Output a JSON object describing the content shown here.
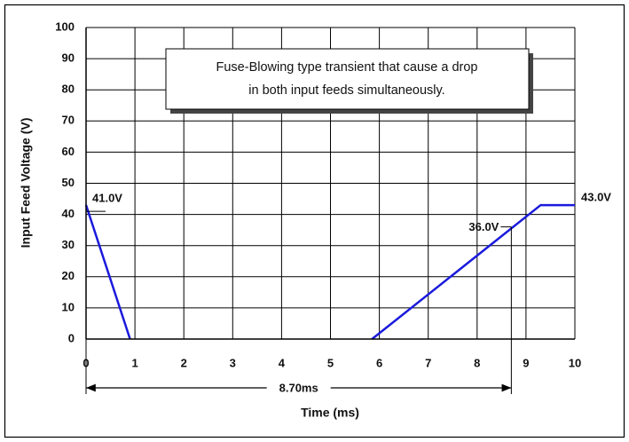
{
  "chart_data": {
    "type": "line",
    "xlabel": "Time (ms)",
    "ylabel": "Input Feed Voltage (V)",
    "x": [
      0,
      0.9,
      3.5,
      5.85,
      9.3,
      10
    ],
    "series": [
      {
        "color": "#1a1adc",
        "values": [
          43,
          0,
          null,
          0,
          43,
          43
        ]
      }
    ],
    "xlim": [
      0,
      10
    ],
    "xticks": [
      0,
      1,
      2,
      3,
      4,
      5,
      6,
      7,
      8,
      9,
      10
    ],
    "ylim": [
      0,
      100
    ],
    "yticks": [
      0,
      10,
      20,
      30,
      40,
      50,
      60,
      70,
      80,
      90,
      100
    ],
    "grid": true,
    "note": [
      "Fuse-Blowing type transient that cause a drop",
      "in both input feeds simultaneously."
    ],
    "annotations": [
      {
        "text": "41.0V",
        "x": 0,
        "y": 41
      },
      {
        "text": "36.0V",
        "x": 8.7,
        "y": 36
      },
      {
        "text": "43.0V",
        "x": 10,
        "y": 43
      }
    ],
    "dimension": {
      "text": "8.70ms",
      "x1": 0,
      "x2": 8.7
    }
  }
}
